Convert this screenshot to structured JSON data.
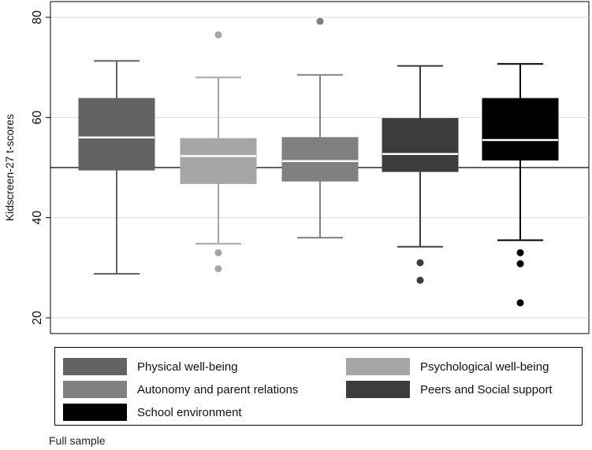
{
  "chart_data": {
    "type": "box",
    "ylabel": "Kidscreen-27 t-scores",
    "ylim": [
      18,
      82
    ],
    "yticks": [
      20,
      40,
      60,
      80
    ],
    "grid": true,
    "reference_line": 50,
    "series": [
      {
        "name": "Physical well-being",
        "color": "#636363",
        "q1": 49.5,
        "median": 56,
        "q3": 63.8,
        "whisker_low": 28.8,
        "whisker_high": 71.3,
        "outliers": []
      },
      {
        "name": "Psychological well-being",
        "color": "#a6a6a6",
        "q1": 46.8,
        "median": 52.3,
        "q3": 55.8,
        "whisker_low": 34.8,
        "whisker_high": 68,
        "outliers": [
          76.5,
          33,
          29.8
        ]
      },
      {
        "name": "Autonomy and parent relations",
        "color": "#808080",
        "q1": 47.3,
        "median": 51.3,
        "q3": 56,
        "whisker_low": 36,
        "whisker_high": 68.5,
        "outliers": [
          79.2
        ]
      },
      {
        "name": "Peers and Social support",
        "color": "#3c3c3c",
        "q1": 49.2,
        "median": 52.7,
        "q3": 59.8,
        "whisker_low": 34.2,
        "whisker_high": 70.3,
        "outliers": [
          31,
          27.5
        ]
      },
      {
        "name": "School environment",
        "color": "#000000",
        "q1": 51.5,
        "median": 55.5,
        "q3": 63.8,
        "whisker_low": 35.5,
        "whisker_high": 70.7,
        "outliers": [
          33,
          30.8,
          23
        ]
      }
    ]
  },
  "legend": {
    "items": [
      {
        "label": "Physical well-being",
        "color": "#636363"
      },
      {
        "label": "Psychological well-being",
        "color": "#a6a6a6"
      },
      {
        "label": "Autonomy and parent relations",
        "color": "#808080"
      },
      {
        "label": "Peers and Social support",
        "color": "#3c3c3c"
      },
      {
        "label": "School environment",
        "color": "#000000"
      }
    ]
  },
  "note": "Full sample"
}
